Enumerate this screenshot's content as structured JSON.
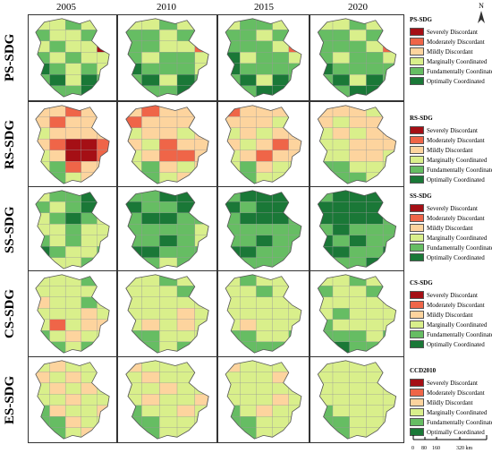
{
  "years": [
    "2005",
    "2010",
    "2015",
    "2020"
  ],
  "rows": [
    {
      "label": "PS-SDG",
      "legend_title": "PS-SDG"
    },
    {
      "label": "RS-SDG",
      "legend_title": "RS-SDG"
    },
    {
      "label": "SS-SDG",
      "legend_title": "SS-SDG"
    },
    {
      "label": "CS-SDG",
      "legend_title": "CS-SDG"
    },
    {
      "label": "ES-SDG",
      "legend_title": "CCD2010"
    }
  ],
  "legend_classes": [
    {
      "label": "Severely Discordant",
      "color": "#a50f15"
    },
    {
      "label": "Moderately Discordant",
      "color": "#ef6548"
    },
    {
      "label": "Mildly Discordant",
      "color": "#fdd49e"
    },
    {
      "label": "Marginally Coordinated",
      "color": "#d9ef8b"
    },
    {
      "label": "Fundamentally Coordinated",
      "color": "#66bd63"
    },
    {
      "label": "Optimally Coordinated",
      "color": "#1a7837"
    }
  ],
  "north_arrow": {
    "label": "N"
  },
  "scale": {
    "ticks": [
      "0",
      "80",
      "160",
      "320 km"
    ]
  },
  "map_classes": [
    [
      [
        [
          3,
          3,
          4,
          3,
          3
        ],
        [
          4,
          3,
          3,
          4,
          3
        ],
        [
          3,
          4,
          3,
          3,
          0
        ],
        [
          4,
          3,
          4,
          3,
          3
        ],
        [
          5,
          4,
          3,
          4,
          3
        ],
        [
          4,
          5,
          3,
          5,
          4
        ],
        [
          3,
          4,
          4,
          5,
          3
        ]
      ],
      [
        [
          3,
          3,
          4,
          3,
          3
        ],
        [
          4,
          4,
          3,
          4,
          3
        ],
        [
          4,
          4,
          3,
          3,
          1
        ],
        [
          4,
          3,
          4,
          4,
          3
        ],
        [
          5,
          4,
          4,
          4,
          3
        ],
        [
          4,
          5,
          3,
          5,
          4
        ],
        [
          3,
          4,
          4,
          5,
          4
        ]
      ],
      [
        [
          3,
          4,
          4,
          3,
          3
        ],
        [
          4,
          4,
          3,
          4,
          3
        ],
        [
          4,
          4,
          4,
          3,
          1
        ],
        [
          5,
          3,
          4,
          4,
          3
        ],
        [
          5,
          4,
          4,
          4,
          4
        ],
        [
          4,
          5,
          3,
          5,
          4
        ],
        [
          3,
          4,
          5,
          5,
          4
        ]
      ],
      [
        [
          3,
          3,
          4,
          3,
          3
        ],
        [
          4,
          4,
          3,
          4,
          3
        ],
        [
          4,
          4,
          4,
          3,
          1
        ],
        [
          4,
          3,
          4,
          4,
          3
        ],
        [
          5,
          4,
          4,
          4,
          4
        ],
        [
          4,
          5,
          3,
          5,
          4
        ],
        [
          3,
          4,
          5,
          5,
          4
        ]
      ]
    ],
    [
      [
        [
          2,
          2,
          1,
          2,
          2
        ],
        [
          2,
          1,
          2,
          2,
          2
        ],
        [
          3,
          2,
          2,
          2,
          2
        ],
        [
          2,
          1,
          0,
          0,
          1
        ],
        [
          3,
          2,
          0,
          0,
          1
        ],
        [
          3,
          4,
          1,
          2,
          2
        ],
        [
          3,
          4,
          3,
          2,
          3
        ]
      ],
      [
        [
          2,
          1,
          2,
          2,
          2
        ],
        [
          1,
          2,
          2,
          2,
          2
        ],
        [
          3,
          2,
          2,
          3,
          2
        ],
        [
          2,
          3,
          1,
          2,
          2
        ],
        [
          3,
          2,
          1,
          1,
          2
        ],
        [
          3,
          4,
          2,
          3,
          2
        ],
        [
          4,
          4,
          3,
          2,
          3
        ]
      ],
      [
        [
          1,
          2,
          2,
          2,
          2
        ],
        [
          2,
          2,
          2,
          3,
          2
        ],
        [
          3,
          2,
          3,
          2,
          2
        ],
        [
          2,
          3,
          2,
          1,
          2
        ],
        [
          3,
          2,
          1,
          2,
          2
        ],
        [
          3,
          4,
          2,
          3,
          3
        ],
        [
          4,
          4,
          3,
          3,
          3
        ]
      ],
      [
        [
          2,
          2,
          2,
          3,
          2
        ],
        [
          2,
          3,
          2,
          2,
          3
        ],
        [
          3,
          2,
          3,
          2,
          2
        ],
        [
          3,
          3,
          2,
          2,
          2
        ],
        [
          3,
          3,
          2,
          2,
          3
        ],
        [
          4,
          4,
          3,
          3,
          3
        ],
        [
          4,
          4,
          4,
          3,
          3
        ]
      ]
    ],
    [
      [
        [
          3,
          4,
          4,
          5,
          3
        ],
        [
          4,
          3,
          4,
          5,
          4
        ],
        [
          3,
          4,
          5,
          4,
          3
        ],
        [
          3,
          3,
          4,
          3,
          3
        ],
        [
          4,
          3,
          4,
          3,
          3
        ],
        [
          5,
          4,
          3,
          3,
          4
        ],
        [
          4,
          3,
          3,
          4,
          3
        ]
      ],
      [
        [
          4,
          4,
          5,
          5,
          4
        ],
        [
          5,
          4,
          4,
          5,
          4
        ],
        [
          4,
          5,
          5,
          4,
          4
        ],
        [
          4,
          4,
          4,
          4,
          3
        ],
        [
          4,
          4,
          5,
          4,
          3
        ],
        [
          5,
          5,
          4,
          4,
          4
        ],
        [
          4,
          4,
          3,
          4,
          4
        ]
      ],
      [
        [
          4,
          5,
          5,
          5,
          4
        ],
        [
          5,
          4,
          5,
          5,
          4
        ],
        [
          4,
          5,
          5,
          5,
          4
        ],
        [
          4,
          4,
          4,
          4,
          4
        ],
        [
          4,
          4,
          5,
          4,
          4
        ],
        [
          5,
          5,
          4,
          4,
          4
        ],
        [
          5,
          4,
          4,
          4,
          4
        ]
      ],
      [
        [
          4,
          5,
          5,
          5,
          5
        ],
        [
          5,
          5,
          5,
          5,
          4
        ],
        [
          5,
          5,
          5,
          5,
          4
        ],
        [
          4,
          5,
          4,
          4,
          4
        ],
        [
          5,
          4,
          5,
          4,
          4
        ],
        [
          5,
          5,
          4,
          4,
          5
        ],
        [
          5,
          4,
          4,
          5,
          4
        ]
      ]
    ],
    [
      [
        [
          3,
          3,
          3,
          4,
          3
        ],
        [
          3,
          3,
          3,
          3,
          3
        ],
        [
          2,
          3,
          3,
          4,
          3
        ],
        [
          3,
          3,
          3,
          2,
          3
        ],
        [
          3,
          1,
          3,
          2,
          2
        ],
        [
          4,
          3,
          2,
          3,
          3
        ],
        [
          5,
          4,
          3,
          4,
          3
        ]
      ],
      [
        [
          3,
          3,
          4,
          3,
          3
        ],
        [
          3,
          3,
          3,
          4,
          3
        ],
        [
          3,
          3,
          3,
          3,
          3
        ],
        [
          3,
          3,
          3,
          2,
          3
        ],
        [
          3,
          2,
          3,
          2,
          3
        ],
        [
          4,
          4,
          3,
          3,
          3
        ],
        [
          5,
          4,
          3,
          4,
          3
        ]
      ],
      [
        [
          3,
          4,
          3,
          3,
          3
        ],
        [
          3,
          3,
          4,
          3,
          3
        ],
        [
          3,
          3,
          3,
          3,
          3
        ],
        [
          3,
          3,
          3,
          3,
          3
        ],
        [
          3,
          2,
          3,
          3,
          3
        ],
        [
          4,
          4,
          3,
          3,
          4
        ],
        [
          5,
          4,
          4,
          4,
          3
        ]
      ],
      [
        [
          3,
          3,
          4,
          3,
          3
        ],
        [
          4,
          3,
          3,
          4,
          3
        ],
        [
          3,
          3,
          3,
          3,
          3
        ],
        [
          3,
          4,
          3,
          3,
          3
        ],
        [
          4,
          3,
          3,
          3,
          3
        ],
        [
          4,
          4,
          4,
          3,
          4
        ],
        [
          5,
          5,
          4,
          4,
          3
        ]
      ]
    ],
    [
      [
        [
          3,
          2,
          3,
          3,
          3
        ],
        [
          2,
          3,
          2,
          3,
          3
        ],
        [
          3,
          2,
          3,
          2,
          3
        ],
        [
          3,
          3,
          2,
          3,
          3
        ],
        [
          4,
          2,
          3,
          3,
          2
        ],
        [
          4,
          4,
          2,
          3,
          3
        ],
        [
          3,
          4,
          3,
          2,
          3
        ]
      ],
      [
        [
          2,
          3,
          3,
          3,
          3
        ],
        [
          3,
          2,
          3,
          3,
          3
        ],
        [
          3,
          3,
          2,
          3,
          3
        ],
        [
          3,
          2,
          3,
          3,
          2
        ],
        [
          4,
          3,
          3,
          2,
          3
        ],
        [
          4,
          4,
          3,
          3,
          3
        ],
        [
          3,
          4,
          3,
          3,
          1
        ]
      ],
      [
        [
          2,
          3,
          3,
          3,
          3
        ],
        [
          3,
          3,
          3,
          2,
          3
        ],
        [
          3,
          3,
          3,
          3,
          3
        ],
        [
          3,
          3,
          3,
          2,
          3
        ],
        [
          4,
          3,
          2,
          3,
          3
        ],
        [
          4,
          4,
          3,
          3,
          3
        ],
        [
          3,
          4,
          3,
          3,
          1
        ]
      ],
      [
        [
          3,
          3,
          3,
          3,
          3
        ],
        [
          3,
          3,
          3,
          3,
          3
        ],
        [
          3,
          3,
          3,
          3,
          3
        ],
        [
          3,
          3,
          3,
          3,
          3
        ],
        [
          4,
          3,
          3,
          3,
          3
        ],
        [
          4,
          4,
          3,
          3,
          3
        ],
        [
          4,
          4,
          3,
          3,
          2
        ]
      ]
    ]
  ]
}
